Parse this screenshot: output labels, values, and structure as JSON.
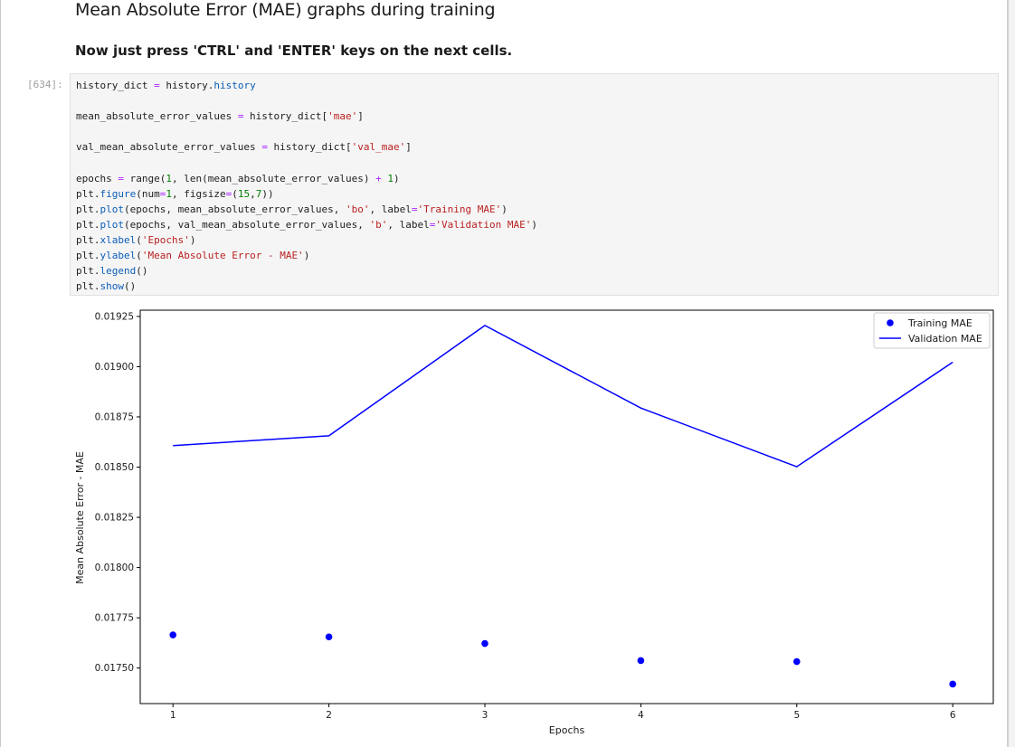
{
  "markdown": {
    "heading": "Mean Absolute Error (MAE) graphs during training",
    "instruction": "Now just press 'CTRL' and 'ENTER' keys on the next cells."
  },
  "cell": {
    "prompt": "[634]:",
    "code_lines": [
      [
        {
          "t": "history_dict "
        },
        {
          "t": "=",
          "c": "op"
        },
        {
          "t": " history."
        },
        {
          "t": "history",
          "c": "attr"
        }
      ],
      [],
      [
        {
          "t": "mean_absolute_error_values "
        },
        {
          "t": "=",
          "c": "op"
        },
        {
          "t": " history_dict["
        },
        {
          "t": "'mae'",
          "c": "str"
        },
        {
          "t": "]"
        }
      ],
      [],
      [
        {
          "t": "val_mean_absolute_error_values "
        },
        {
          "t": "=",
          "c": "op"
        },
        {
          "t": " history_dict["
        },
        {
          "t": "'val_mae'",
          "c": "str"
        },
        {
          "t": "]"
        }
      ],
      [],
      [
        {
          "t": "epochs "
        },
        {
          "t": "=",
          "c": "op"
        },
        {
          "t": " range("
        },
        {
          "t": "1",
          "c": "num"
        },
        {
          "t": ", len(mean_absolute_error_values) "
        },
        {
          "t": "+",
          "c": "op"
        },
        {
          "t": " "
        },
        {
          "t": "1",
          "c": "num"
        },
        {
          "t": ")"
        }
      ],
      [
        {
          "t": "plt."
        },
        {
          "t": "figure",
          "c": "attr"
        },
        {
          "t": "(num"
        },
        {
          "t": "=",
          "c": "op"
        },
        {
          "t": "1",
          "c": "num"
        },
        {
          "t": ", figsize"
        },
        {
          "t": "=",
          "c": "op"
        },
        {
          "t": "("
        },
        {
          "t": "15",
          "c": "num"
        },
        {
          "t": ","
        },
        {
          "t": "7",
          "c": "num"
        },
        {
          "t": "))"
        }
      ],
      [
        {
          "t": "plt."
        },
        {
          "t": "plot",
          "c": "attr"
        },
        {
          "t": "(epochs, mean_absolute_error_values, "
        },
        {
          "t": "'bo'",
          "c": "str"
        },
        {
          "t": ", label"
        },
        {
          "t": "=",
          "c": "op"
        },
        {
          "t": "'Training MAE'",
          "c": "str"
        },
        {
          "t": ")"
        }
      ],
      [
        {
          "t": "plt."
        },
        {
          "t": "plot",
          "c": "attr"
        },
        {
          "t": "(epochs, val_mean_absolute_error_values, "
        },
        {
          "t": "'b'",
          "c": "str"
        },
        {
          "t": ", label"
        },
        {
          "t": "=",
          "c": "op"
        },
        {
          "t": "'Validation MAE'",
          "c": "str"
        },
        {
          "t": ")"
        }
      ],
      [
        {
          "t": "plt."
        },
        {
          "t": "xlabel",
          "c": "attr"
        },
        {
          "t": "("
        },
        {
          "t": "'Epochs'",
          "c": "str"
        },
        {
          "t": ")"
        }
      ],
      [
        {
          "t": "plt."
        },
        {
          "t": "ylabel",
          "c": "attr"
        },
        {
          "t": "("
        },
        {
          "t": "'Mean Absolute Error - MAE'",
          "c": "str"
        },
        {
          "t": ")"
        }
      ],
      [
        {
          "t": "plt."
        },
        {
          "t": "legend",
          "c": "attr"
        },
        {
          "t": "()"
        }
      ],
      [
        {
          "t": "plt."
        },
        {
          "t": "show",
          "c": "attr"
        },
        {
          "t": "()"
        }
      ]
    ]
  },
  "chart_data": {
    "type": "line",
    "title": "",
    "xlabel": "Epochs",
    "ylabel": "Mean Absolute Error - MAE",
    "x": [
      1,
      2,
      3,
      4,
      5,
      6
    ],
    "xticks": [
      "1",
      "2",
      "3",
      "4",
      "5",
      "6"
    ],
    "xlim": [
      0.79,
      6.26
    ],
    "yticks": [
      "0.01750",
      "0.01775",
      "0.01800",
      "0.01825",
      "0.01850",
      "0.01875",
      "0.01900",
      "0.01925"
    ],
    "ytick_values": [
      0.0175,
      0.01775,
      0.018,
      0.01825,
      0.0185,
      0.01875,
      0.019,
      0.01925
    ],
    "ylim": [
      0.017323,
      0.019281
    ],
    "grid": false,
    "legend_position": "upper right",
    "series": [
      {
        "name": "Training MAE",
        "style": "markers",
        "color": "#0000ff",
        "values": [
          0.017665,
          0.017655,
          0.017622,
          0.017537,
          0.017532,
          0.01742
        ]
      },
      {
        "name": "Validation MAE",
        "style": "line",
        "color": "#0000ff",
        "values": [
          0.018607,
          0.018656,
          0.019205,
          0.018794,
          0.018502,
          0.019022
        ]
      }
    ]
  }
}
